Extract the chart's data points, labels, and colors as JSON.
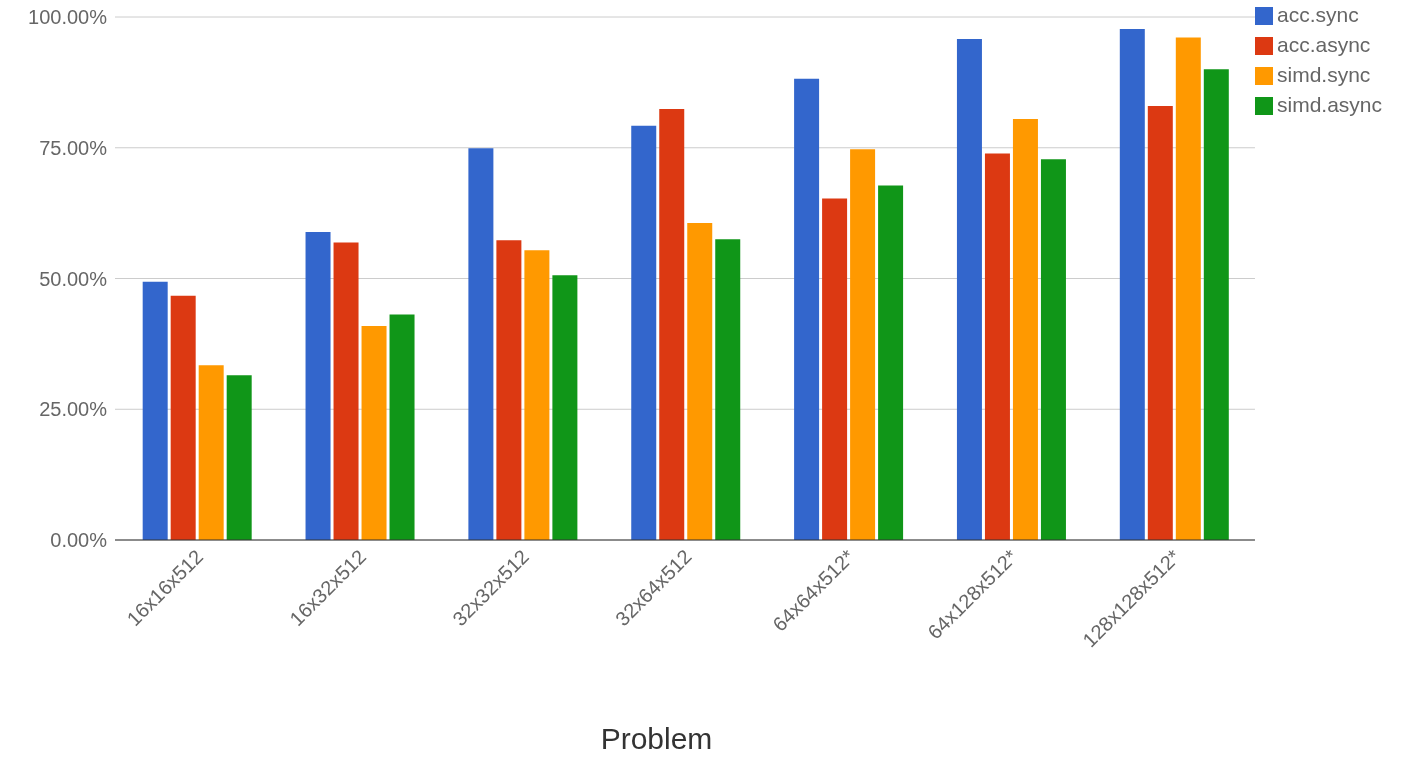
{
  "chart_data": {
    "type": "bar",
    "xlabel": "Problem",
    "categories": [
      "16x16x512",
      "16x32x512",
      "32x32x512",
      "32x64x512",
      "64x64x512*",
      "64x128x512*",
      "128x128x512*"
    ],
    "series": [
      {
        "name": "acc.sync",
        "color": "#3366cc",
        "values": [
          49.4,
          58.9,
          74.9,
          79.2,
          88.2,
          95.8,
          97.7
        ]
      },
      {
        "name": "acc.async",
        "color": "#dc3912",
        "values": [
          46.7,
          56.9,
          57.3,
          82.4,
          65.3,
          73.9,
          83.0
        ]
      },
      {
        "name": "simd.sync",
        "color": "#ff9900",
        "values": [
          33.4,
          40.9,
          55.4,
          60.6,
          74.7,
          80.5,
          96.1
        ]
      },
      {
        "name": "simd.async",
        "color": "#109618",
        "values": [
          31.5,
          43.1,
          50.6,
          57.5,
          67.8,
          72.8,
          90.0
        ]
      }
    ],
    "ylim": [
      0,
      100
    ],
    "yticks": [
      {
        "value": 0,
        "label": "0.00%"
      },
      {
        "value": 25,
        "label": "25.00%"
      },
      {
        "value": 50,
        "label": "50.00%"
      },
      {
        "value": 75,
        "label": "75.00%"
      },
      {
        "value": 100,
        "label": "100.00%"
      }
    ],
    "grid": "y",
    "legend": "top right"
  }
}
